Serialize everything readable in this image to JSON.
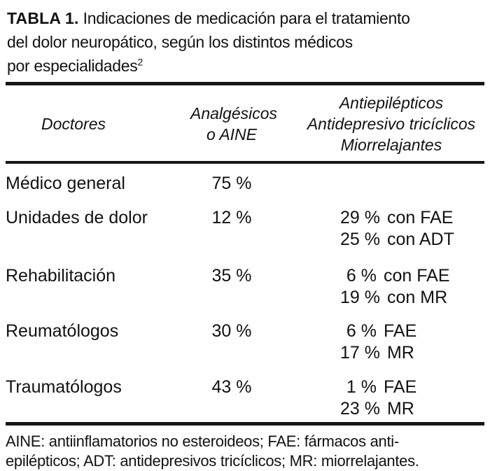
{
  "title": {
    "bold": "TABLA 1.",
    "line1": "Indicaciones de medicación para el tratamiento",
    "line2": "del dolor neuropático, según los distintos médicos",
    "line3": "por especialidades",
    "citation_sup": "2"
  },
  "table": {
    "headers": {
      "doctors": "Doctores",
      "analgesics": [
        "Analgésicos",
        "o AINE"
      ],
      "others": [
        "Antiepilépticos",
        "Antidepresivo tricíclicos",
        "Miorrelajantes"
      ]
    },
    "rows": [
      {
        "doctor": "Médico general",
        "aine": "75 %"
      },
      {
        "doctor": "Unidades de dolor",
        "aine": "12 %",
        "otros": [
          {
            "pct": "29 %",
            "label": "con FAE"
          },
          {
            "pct": "25 %",
            "label": "con ADT"
          }
        ]
      },
      {
        "doctor": "Rehabilitación",
        "aine": "35 %",
        "otros": [
          {
            "pct": "6 %",
            "label": "con FAE"
          },
          {
            "pct": "19 %",
            "label": "con MR"
          }
        ]
      },
      {
        "doctor": "Reumatólogos",
        "aine": "30 %",
        "otros": [
          {
            "pct": "6 %",
            "label": "FAE"
          },
          {
            "pct": "17 %",
            "label": "MR"
          }
        ]
      },
      {
        "doctor": "Traumatólogos",
        "aine": "43 %",
        "otros": [
          {
            "pct": "1 %",
            "label": "FAE"
          },
          {
            "pct": "23 %",
            "label": "MR"
          }
        ]
      }
    ]
  },
  "footnote": {
    "line1": "AINE: antiinflamatorios no esteroideos; FAE: fármacos anti-",
    "line2": "epilépticos; ADT: antidepresivos tricíclicos; MR: miorrelajantes."
  },
  "colors": {
    "text": "#121212",
    "rule": "#161616",
    "background": "#ffffff"
  }
}
